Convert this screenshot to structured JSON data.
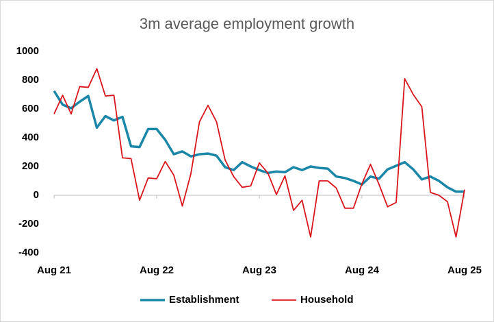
{
  "chart_data": {
    "type": "line",
    "title": "3m average employment growth",
    "categories": [
      "Aug 21",
      null,
      null,
      null,
      null,
      null,
      null,
      null,
      null,
      null,
      null,
      null,
      "Aug 22",
      null,
      null,
      null,
      null,
      null,
      null,
      null,
      null,
      null,
      null,
      null,
      "Aug 23",
      null,
      null,
      null,
      null,
      null,
      null,
      null,
      null,
      null,
      null,
      null,
      "Aug 24",
      null,
      null,
      null,
      null,
      null,
      null,
      null,
      null,
      null,
      null,
      null,
      "Aug 25"
    ],
    "series": [
      {
        "name": "Establishment",
        "color": "#1a86a8",
        "values": [
          725,
          630,
          605,
          650,
          690,
          470,
          550,
          520,
          545,
          340,
          335,
          460,
          460,
          385,
          285,
          305,
          270,
          285,
          290,
          275,
          195,
          175,
          230,
          200,
          175,
          155,
          165,
          160,
          195,
          175,
          200,
          190,
          185,
          130,
          120,
          100,
          75,
          130,
          115,
          180,
          205,
          230,
          180,
          110,
          130,
          100,
          55,
          25,
          25
        ]
      },
      {
        "name": "Household",
        "color": "#d9141b",
        "values": [
          565,
          695,
          565,
          755,
          750,
          880,
          690,
          695,
          260,
          255,
          -35,
          120,
          115,
          235,
          140,
          -75,
          150,
          510,
          625,
          510,
          245,
          130,
          55,
          65,
          225,
          155,
          5,
          135,
          -105,
          -35,
          -290,
          100,
          100,
          50,
          -90,
          -90,
          80,
          215,
          75,
          -80,
          -50,
          810,
          700,
          615,
          20,
          0,
          -45,
          -290,
          40
        ]
      }
    ],
    "ylim": [
      -400,
      1000
    ],
    "yticks": [
      -400,
      -200,
      0,
      200,
      400,
      600,
      800,
      1000
    ],
    "legend": "bottom"
  }
}
